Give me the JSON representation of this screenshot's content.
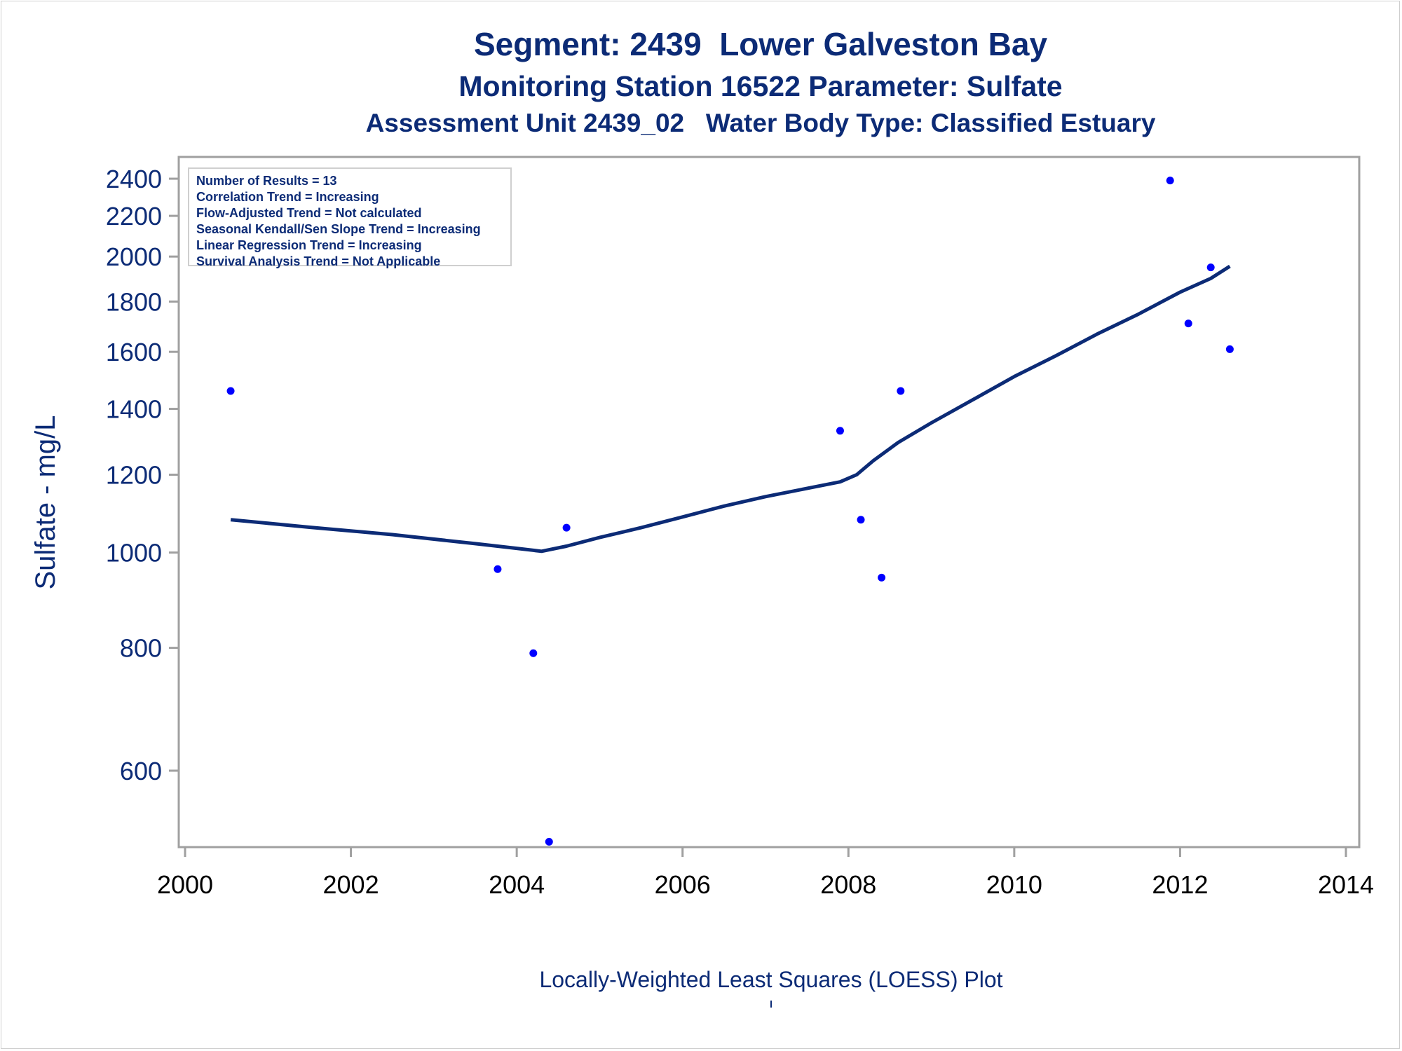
{
  "chart_data": {
    "type": "scatter",
    "title": "Segment: 2439  Lower Galveston Bay",
    "subtitle": "Monitoring Station 16522 Parameter: Sulfate",
    "subtitle2": "Assessment Unit 2439_02   Water Body Type: Classified Estuary",
    "ylabel": "Sulfate - mg/L",
    "xlabel": "",
    "footnote": "Locally-Weighted Least Squares (LOESS) Plot",
    "y_scale": "log",
    "xlim": [
      2000,
      2014
    ],
    "ylim": [
      505,
      2460
    ],
    "x_ticks": [
      2000,
      2002,
      2004,
      2006,
      2008,
      2010,
      2012,
      2014
    ],
    "y_ticks": [
      600,
      800,
      1000,
      1200,
      1400,
      1600,
      1800,
      2000,
      2200,
      2400
    ],
    "grid": false,
    "info_lines": [
      "Number of Results = 13",
      "Correlation Trend = Increasing",
      "Flow-Adjusted Trend = Not calculated",
      "Seasonal Kendall/Sen Slope Trend = Increasing",
      "Linear Regression Trend = Increasing",
      "Survival Analysis Trend = Not Applicable"
    ],
    "points": [
      {
        "x": 2000.55,
        "y": 1460
      },
      {
        "x": 2003.77,
        "y": 962
      },
      {
        "x": 2004.2,
        "y": 790
      },
      {
        "x": 2004.39,
        "y": 508
      },
      {
        "x": 2004.6,
        "y": 1060
      },
      {
        "x": 2007.9,
        "y": 1330
      },
      {
        "x": 2008.15,
        "y": 1080
      },
      {
        "x": 2008.4,
        "y": 943
      },
      {
        "x": 2008.63,
        "y": 1460
      },
      {
        "x": 2011.88,
        "y": 2390
      },
      {
        "x": 2012.1,
        "y": 1710
      },
      {
        "x": 2012.37,
        "y": 1950
      },
      {
        "x": 2012.6,
        "y": 1610
      }
    ],
    "loess_line": [
      {
        "x": 2000.55,
        "y": 1080
      },
      {
        "x": 2001.5,
        "y": 1061
      },
      {
        "x": 2002.5,
        "y": 1043
      },
      {
        "x": 2003.5,
        "y": 1021
      },
      {
        "x": 2004.0,
        "y": 1010
      },
      {
        "x": 2004.3,
        "y": 1003
      },
      {
        "x": 2004.6,
        "y": 1015
      },
      {
        "x": 2005.0,
        "y": 1036
      },
      {
        "x": 2005.5,
        "y": 1060
      },
      {
        "x": 2006.0,
        "y": 1087
      },
      {
        "x": 2006.5,
        "y": 1115
      },
      {
        "x": 2007.0,
        "y": 1140
      },
      {
        "x": 2007.5,
        "y": 1162
      },
      {
        "x": 2007.9,
        "y": 1180
      },
      {
        "x": 2008.1,
        "y": 1200
      },
      {
        "x": 2008.3,
        "y": 1240
      },
      {
        "x": 2008.6,
        "y": 1294
      },
      {
        "x": 2009.0,
        "y": 1355
      },
      {
        "x": 2009.5,
        "y": 1430
      },
      {
        "x": 2010.0,
        "y": 1510
      },
      {
        "x": 2010.5,
        "y": 1585
      },
      {
        "x": 2011.0,
        "y": 1668
      },
      {
        "x": 2011.5,
        "y": 1748
      },
      {
        "x": 2012.0,
        "y": 1840
      },
      {
        "x": 2012.37,
        "y": 1900
      },
      {
        "x": 2012.6,
        "y": 1955
      }
    ],
    "colors": {
      "text": "#0c2b76",
      "line": "#0c2b76",
      "points": "#0000ff",
      "axis": "#a0a0a0"
    }
  }
}
